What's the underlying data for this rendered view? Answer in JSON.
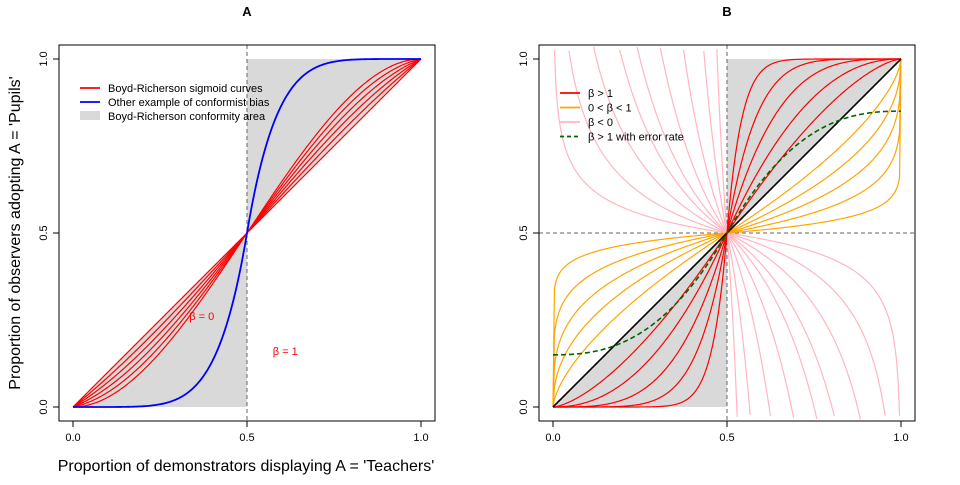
{
  "figure": {
    "ylabel": "Proportion of observers adopting A = 'Pupils'",
    "xlabel": "Proportion of demonstrators displaying A = 'Teachers'",
    "colors": {
      "red": "#ff0000",
      "blue": "#0000ff",
      "orange": "#ffa500",
      "pink": "#ffb6c1",
      "dark_green": "#006400",
      "black": "#000000",
      "area": "#d9d9d9",
      "guide": "#666666"
    }
  },
  "chart_data": [
    {
      "type": "line",
      "title": "A",
      "xlim": [
        0,
        1
      ],
      "ylim": [
        0,
        1
      ],
      "xticks": [
        "0.0",
        "0.5",
        "1.0"
      ],
      "yticks": [
        "0.0",
        "0.5",
        "1.0"
      ],
      "grid": false,
      "legend_position": "top-left",
      "legend": [
        {
          "label": "Boyd-Richerson sigmoid curves",
          "color": "#ff0000",
          "style": "line"
        },
        {
          "label": "Other example of conformist bias",
          "color": "#0000ff",
          "style": "line"
        },
        {
          "label": "Boyd-Richerson conformity area",
          "color": "#d9d9d9",
          "style": "fill"
        }
      ],
      "shaded_areas": [
        {
          "x": [
            0,
            0.5
          ],
          "y": [
            0,
            0
          ]
        },
        {
          "x": [
            0.5,
            1
          ],
          "y": [
            1,
            1
          ]
        }
      ],
      "guides": {
        "vertical_x": [
          0.5
        ],
        "horizontal_y": []
      },
      "series": [
        {
          "group": "Boyd-Richerson sigmoid curves",
          "color": "#ff0000",
          "model": "boyd_richerson",
          "beta": 0
        },
        {
          "group": "Boyd-Richerson sigmoid curves",
          "color": "#ff0000",
          "model": "boyd_richerson",
          "beta": 0.2
        },
        {
          "group": "Boyd-Richerson sigmoid curves",
          "color": "#ff0000",
          "model": "boyd_richerson",
          "beta": 0.4
        },
        {
          "group": "Boyd-Richerson sigmoid curves",
          "color": "#ff0000",
          "model": "boyd_richerson",
          "beta": 0.6
        },
        {
          "group": "Boyd-Richerson sigmoid curves",
          "color": "#ff0000",
          "model": "boyd_richerson",
          "beta": 0.8
        },
        {
          "group": "Boyd-Richerson sigmoid curves",
          "color": "#ff0000",
          "model": "boyd_richerson",
          "beta": 1
        },
        {
          "group": "Other example of conformist bias",
          "color": "#0000ff",
          "model": "power_sigmoid",
          "beta": 6
        }
      ],
      "annotations": [
        {
          "text": "β = 0",
          "x": 0.38,
          "y": 0.25,
          "color": "#ff0000"
        },
        {
          "text": "β = 1",
          "x": 0.62,
          "y": 0.15,
          "color": "#ff0000"
        }
      ]
    },
    {
      "type": "line",
      "title": "B",
      "xlim": [
        0,
        1
      ],
      "ylim": [
        0,
        1
      ],
      "xticks": [
        "0.0",
        "0.5",
        "1.0"
      ],
      "yticks": [
        "0.0",
        "0.5",
        "1.0"
      ],
      "grid": false,
      "legend_position": "top-left",
      "legend": [
        {
          "label": "β > 1",
          "color": "#ff0000",
          "style": "line"
        },
        {
          "label": "0 < β < 1",
          "color": "#ffa500",
          "style": "line"
        },
        {
          "label": "β < 0",
          "color": "#ffb6c1",
          "style": "line"
        },
        {
          "label": "β > 1 with error rate",
          "color": "#006400",
          "style": "dashed"
        }
      ],
      "shaded_areas": [
        {
          "x": [
            0,
            0.5
          ],
          "y": [
            0,
            0
          ]
        },
        {
          "x": [
            0.5,
            1
          ],
          "y": [
            1,
            1
          ]
        }
      ],
      "guides": {
        "vertical_x": [
          0.5
        ],
        "horizontal_y": [
          0.5
        ]
      },
      "series": [
        {
          "group": "β < 0",
          "color": "#ffb6c1",
          "model": "power_sigmoid",
          "beta": -0.15
        },
        {
          "group": "β < 0",
          "color": "#ffb6c1",
          "model": "power_sigmoid",
          "beta": -0.3
        },
        {
          "group": "β < 0",
          "color": "#ffb6c1",
          "model": "power_sigmoid",
          "beta": -0.5
        },
        {
          "group": "β < 0",
          "color": "#ffb6c1",
          "model": "power_sigmoid",
          "beta": -0.75
        },
        {
          "group": "β < 0",
          "color": "#ffb6c1",
          "model": "power_sigmoid",
          "beta": -1
        },
        {
          "group": "β < 0",
          "color": "#ffb6c1",
          "model": "power_sigmoid",
          "beta": -1.5
        },
        {
          "group": "β < 0",
          "color": "#ffb6c1",
          "model": "power_sigmoid",
          "beta": -2.5
        },
        {
          "group": "β < 0",
          "color": "#ffb6c1",
          "model": "power_sigmoid",
          "beta": -5
        },
        {
          "group": "β < 0",
          "color": "#ffb6c1",
          "model": "power_sigmoid",
          "beta": -12
        },
        {
          "group": "0 < β < 1",
          "color": "#ffa500",
          "model": "power_sigmoid",
          "beta": 0.08
        },
        {
          "group": "0 < β < 1",
          "color": "#ffa500",
          "model": "power_sigmoid",
          "beta": 0.18
        },
        {
          "group": "0 < β < 1",
          "color": "#ffa500",
          "model": "power_sigmoid",
          "beta": 0.3
        },
        {
          "group": "0 < β < 1",
          "color": "#ffa500",
          "model": "power_sigmoid",
          "beta": 0.45
        },
        {
          "group": "0 < β < 1",
          "color": "#ffa500",
          "model": "power_sigmoid",
          "beta": 0.65
        },
        {
          "group": "β > 1",
          "color": "#ff0000",
          "model": "power_sigmoid",
          "beta": 1.5
        },
        {
          "group": "β > 1",
          "color": "#ff0000",
          "model": "power_sigmoid",
          "beta": 2.2
        },
        {
          "group": "β > 1",
          "color": "#ff0000",
          "model": "power_sigmoid",
          "beta": 3.5
        },
        {
          "group": "β > 1",
          "color": "#ff0000",
          "model": "power_sigmoid",
          "beta": 6
        },
        {
          "group": "β > 1",
          "color": "#ff0000",
          "model": "power_sigmoid",
          "beta": 12
        },
        {
          "group": "β = 1",
          "color": "#000000",
          "model": "power_sigmoid",
          "beta": 1
        },
        {
          "group": "β > 1 with error rate",
          "color": "#006400",
          "model": "error_sigmoid",
          "beta": 2.5,
          "lower": 0.15,
          "upper": 0.85,
          "dashed": true
        }
      ],
      "annotations": []
    }
  ]
}
